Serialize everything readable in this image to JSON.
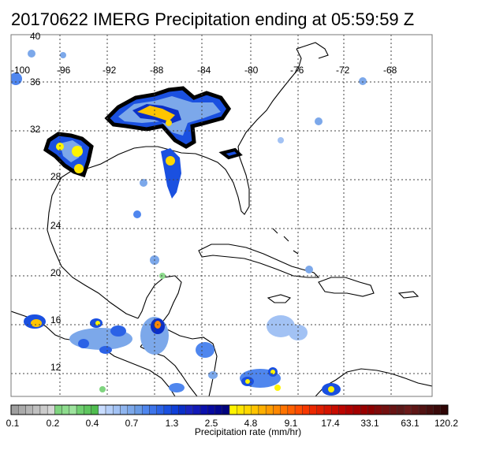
{
  "title": "20170622 IMERG Precipitation ending at 05:59:59 Z",
  "map": {
    "lon_labels": [
      "-100",
      "-96",
      "-92",
      "-88",
      "-84",
      "-80",
      "-76",
      "-72",
      "-68"
    ],
    "lat_labels": [
      "40",
      "36",
      "32",
      "28",
      "24",
      "20",
      "16",
      "12"
    ]
  },
  "colorbar": {
    "title": "Precipitation rate (mm/hr)",
    "tick_labels": [
      "0.1",
      "0.2",
      "0.4",
      "0.7",
      "1.3",
      "2.5",
      "4.8",
      "9.1",
      "17.4",
      "33.1",
      "63.1",
      "120.2"
    ],
    "colors": [
      "#9e9e9e",
      "#aaaaaa",
      "#b5b5b5",
      "#c0c0c0",
      "#cbcbcb",
      "#d6d6d6",
      "#7fd47f",
      "#8edc8e",
      "#9de39d",
      "#6fcf6f",
      "#5fc65f",
      "#4fbd4f",
      "#c8dcff",
      "#b5cff9",
      "#a2c2f4",
      "#8fb5ef",
      "#7ca8ea",
      "#699be5",
      "#4f86ee",
      "#3d74ea",
      "#2b62e6",
      "#1a50e0",
      "#0f3fd8",
      "#0a2fc8",
      "#1a24c0",
      "#1219b8",
      "#0a10ad",
      "#0609a0",
      "#030690",
      "#02037e",
      "#fff400",
      "#ffe600",
      "#ffd700",
      "#ffc400",
      "#ffb000",
      "#ff9c00",
      "#ff8800",
      "#ff7400",
      "#ff6000",
      "#ff4c00",
      "#f73800",
      "#ec2800",
      "#e01e00",
      "#d41400",
      "#c80c00",
      "#bc0400",
      "#b00000",
      "#a40000",
      "#980000",
      "#8c0000",
      "#800a0a",
      "#741010",
      "#681414",
      "#5c1818",
      "#6a1a1a",
      "#5e1616",
      "#521212",
      "#460e0e",
      "#3a0a0a",
      "#300606"
    ]
  }
}
